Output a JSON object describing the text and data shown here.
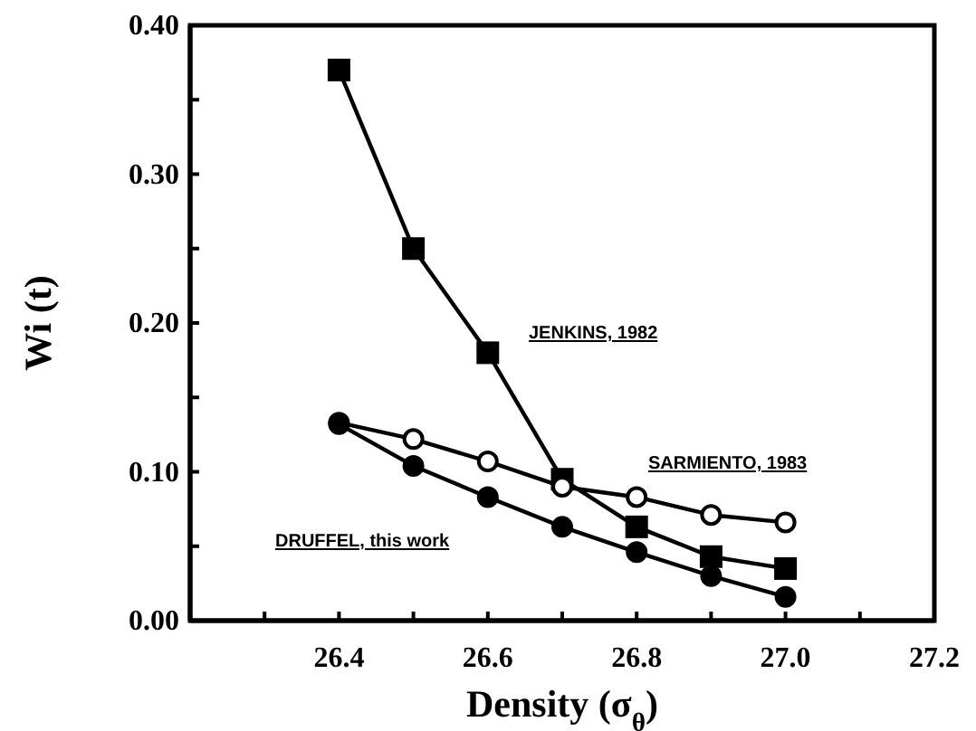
{
  "chart_data": {
    "type": "line",
    "xlabel": "Density  (σ$_{θ}$)",
    "ylabel": "Wi (t)",
    "xlim": [
      26.2,
      27.2
    ],
    "xticks": [
      {
        "value": 26.2,
        "label": null
      },
      {
        "value": 26.3,
        "label": null
      },
      26.4,
      {
        "value": 26.5,
        "label": null
      },
      26.6,
      {
        "value": 26.7,
        "label": null
      },
      26.8,
      {
        "value": 26.9,
        "label": null
      },
      {
        "value": 27,
        "label": "27.0"
      },
      {
        "value": 27.1,
        "label": null
      },
      27.2
    ],
    "ylim": [
      0,
      0.4
    ],
    "yticks": [
      {
        "value": 0,
        "label": "0.00"
      },
      {
        "value": 0.05,
        "label": null
      },
      {
        "value": 0.1,
        "label": "0.10"
      },
      {
        "value": 0.15,
        "label": null
      },
      {
        "value": 0.2,
        "label": "0.20"
      },
      {
        "value": 0.25,
        "label": null
      },
      {
        "value": 0.3,
        "label": "0.30"
      },
      {
        "value": 0.35,
        "label": null
      },
      {
        "value": 0.4,
        "label": "0.40"
      }
    ],
    "x": [
      26.4,
      26.5,
      26.6,
      26.7,
      26.8,
      26.9,
      27.0
    ],
    "grid": false,
    "series": [
      {
        "name": "JENKINS, 1982",
        "color": "#000000",
        "marker": "square",
        "values": [
          0.37,
          0.25,
          0.18,
          0.095,
          0.063,
          0.043,
          0.035
        ]
      },
      {
        "name": "SARMIENTO, 1983",
        "color": "#000000",
        "marker": "circle",
        "values": [
          0.133,
          0.122,
          0.107,
          0.09,
          0.083,
          0.071,
          0.066
        ]
      },
      {
        "name": "DRUFFEL, this work",
        "color": "#000000",
        "marker": "circle",
        "values": [
          0.132,
          0.104,
          0.083,
          0.063,
          0.046,
          0.03,
          0.016
        ]
      }
    ]
  }
}
